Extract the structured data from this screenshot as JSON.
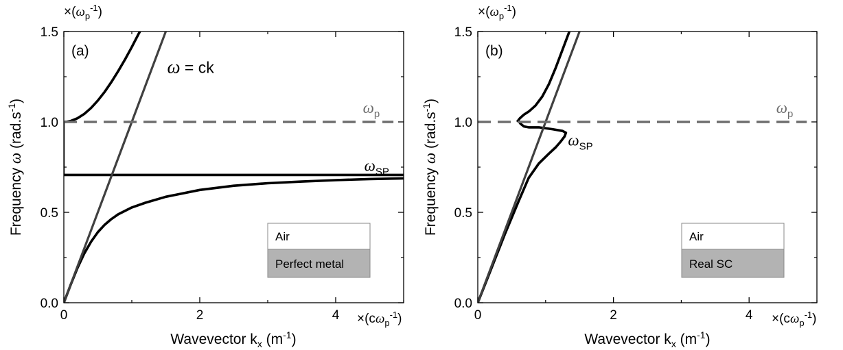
{
  "colors": {
    "curve": "#000000",
    "light_line": "#404040",
    "plasma_dashed": "#6e6e6e",
    "annotation_gray": "#6e6e6e",
    "legend_metal_fill": "#b3b3b3",
    "legend_air_fill": "#ffffff"
  },
  "chart_data": [
    {
      "type": "line",
      "panel_label": "(a)",
      "xlabel": {
        "main": "Wavevector k",
        "sub": "x",
        "unit_open": " (m",
        "unit_sup": "-1",
        "unit_close": ")"
      },
      "ylabel": {
        "main": "Frequency ",
        "omega": "ω",
        "unit": " (rad.s",
        "unit_sup": "-1",
        "unit_close": ")"
      },
      "x_multiplier": {
        "open": "×(c",
        "omega": "ω",
        "sub": "p",
        "sup": "-1",
        "close": ")"
      },
      "y_multiplier": {
        "open": "×(",
        "omega": "ω",
        "sub": "p",
        "sup": "-1",
        "close": ")"
      },
      "xlim": [
        0,
        5
      ],
      "ylim": [
        0,
        1.5
      ],
      "xticks": [
        "0",
        "2",
        "4"
      ],
      "xtick_values": [
        0,
        2,
        4
      ],
      "minor_xticks": [
        1,
        3,
        5
      ],
      "yticks": [
        "0.0",
        "0.5",
        "1.0",
        "1.5"
      ],
      "ytick_values": [
        0,
        0.5,
        1.0,
        1.5
      ],
      "minor_yticks": [
        0.25,
        0.75,
        1.25
      ],
      "series": [
        {
          "role": "upper-branch",
          "points": [
            [
              0.0,
              1.0
            ],
            [
              0.05,
              1.001
            ],
            [
              0.1,
              1.005
            ],
            [
              0.2,
              1.02
            ],
            [
              0.3,
              1.044
            ],
            [
              0.4,
              1.077
            ],
            [
              0.5,
              1.118
            ],
            [
              0.6,
              1.166
            ],
            [
              0.7,
              1.221
            ],
            [
              0.8,
              1.281
            ],
            [
              0.9,
              1.345
            ],
            [
              1.0,
              1.414
            ],
            [
              1.1,
              1.487
            ],
            [
              1.12,
              1.5
            ]
          ]
        },
        {
          "role": "lower-branch-sp",
          "points": [
            [
              0.0,
              0.0
            ],
            [
              0.1,
              0.099
            ],
            [
              0.2,
              0.192
            ],
            [
              0.3,
              0.272
            ],
            [
              0.4,
              0.337
            ],
            [
              0.5,
              0.39
            ],
            [
              0.6,
              0.431
            ],
            [
              0.7,
              0.463
            ],
            [
              0.8,
              0.489
            ],
            [
              1.0,
              0.527
            ],
            [
              1.2,
              0.553
            ],
            [
              1.5,
              0.586
            ],
            [
              2.0,
              0.624
            ],
            [
              2.5,
              0.647
            ],
            [
              3.0,
              0.661
            ],
            [
              3.5,
              0.67
            ],
            [
              4.0,
              0.678
            ],
            [
              4.5,
              0.684
            ],
            [
              5.0,
              0.688
            ]
          ]
        },
        {
          "role": "sp-asymptote",
          "points": [
            [
              0.0,
              0.707
            ],
            [
              5.0,
              0.707
            ]
          ]
        },
        {
          "role": "vertical-segment",
          "points": [
            [
              0.0,
              0.707
            ],
            [
              0.0,
              1.0
            ]
          ]
        },
        {
          "role": "light-line",
          "points": [
            [
              0.0,
              0.0
            ],
            [
              1.5,
              1.5
            ]
          ]
        },
        {
          "role": "plasma-frequency",
          "points": [
            [
              0.0,
              1.0
            ],
            [
              4.85,
              1.0
            ]
          ]
        }
      ],
      "annotations": {
        "light_line": {
          "omega": "ω",
          "text": " = ck",
          "x": 1.52,
          "y": 1.27
        },
        "wp": {
          "omega": "ω",
          "sub": "p",
          "x": 4.4,
          "y": 1.05
        },
        "wsp": {
          "omega": "ω",
          "sub": "SP",
          "x": 4.42,
          "y": 0.73
        }
      },
      "legend": {
        "placement": "bottom-right",
        "top_label": "Air",
        "bottom_label": "Perfect metal"
      }
    },
    {
      "type": "line",
      "panel_label": "(b)",
      "xlabel": {
        "main": "Wavevector k",
        "sub": "x",
        "unit_open": " (m",
        "unit_sup": "-1",
        "unit_close": ")"
      },
      "ylabel": {
        "main": "Frequency ",
        "omega": "ω",
        "unit": " (rad.s",
        "unit_sup": "-1",
        "unit_close": ")"
      },
      "x_multiplier": {
        "open": "×(c",
        "omega": "ω",
        "sub": "p",
        "sup": "-1",
        "close": ")"
      },
      "y_multiplier": {
        "open": "×(",
        "omega": "ω",
        "sub": "p",
        "sup": "-1",
        "close": ")"
      },
      "xlim": [
        0,
        5
      ],
      "ylim": [
        0,
        1.5
      ],
      "xticks": [
        "0",
        "2",
        "4"
      ],
      "xtick_values": [
        0,
        2,
        4
      ],
      "minor_xticks": [
        1,
        3,
        5
      ],
      "yticks": [
        "0.0",
        "0.5",
        "1.0",
        "1.5"
      ],
      "ytick_values": [
        0,
        0.5,
        1.0,
        1.5
      ],
      "minor_yticks": [
        0.25,
        0.75,
        1.25
      ],
      "series": [
        {
          "role": "upper-branch",
          "points": [
            [
              0.58,
              1.0
            ],
            [
              0.62,
              1.02
            ],
            [
              0.68,
              1.04
            ],
            [
              0.76,
              1.06
            ],
            [
              0.85,
              1.09
            ],
            [
              0.95,
              1.14
            ],
            [
              1.05,
              1.21
            ],
            [
              1.15,
              1.3
            ],
            [
              1.25,
              1.4
            ],
            [
              1.35,
              1.5
            ]
          ]
        },
        {
          "role": "lower-branch-sp",
          "points": [
            [
              0.0,
              0.0
            ],
            [
              0.2,
              0.19
            ],
            [
              0.4,
              0.38
            ],
            [
              0.6,
              0.56
            ],
            [
              0.75,
              0.69
            ],
            [
              0.9,
              0.77
            ],
            [
              1.05,
              0.825
            ],
            [
              1.15,
              0.86
            ],
            [
              1.22,
              0.89
            ],
            [
              1.28,
              0.92
            ],
            [
              1.3,
              0.94
            ],
            [
              1.25,
              0.95
            ],
            [
              1.1,
              0.96
            ],
            [
              0.9,
              0.97
            ],
            [
              0.75,
              0.97
            ],
            [
              0.68,
              0.975
            ],
            [
              0.63,
              0.99
            ],
            [
              0.61,
              1.0
            ]
          ]
        },
        {
          "role": "light-line",
          "points": [
            [
              0.0,
              0.0
            ],
            [
              1.5,
              1.5
            ]
          ]
        },
        {
          "role": "plasma-frequency",
          "points": [
            [
              0.0,
              1.0
            ],
            [
              4.85,
              1.0
            ]
          ]
        }
      ],
      "annotations": {
        "wp": {
          "omega": "ω",
          "sub": "p",
          "x": 4.4,
          "y": 1.05
        },
        "wsp": {
          "omega": "ω",
          "sub": "SP",
          "x": 1.33,
          "y": 0.87
        }
      },
      "legend": {
        "placement": "bottom-right",
        "top_label": "Air",
        "bottom_label": "Real SC"
      }
    }
  ]
}
